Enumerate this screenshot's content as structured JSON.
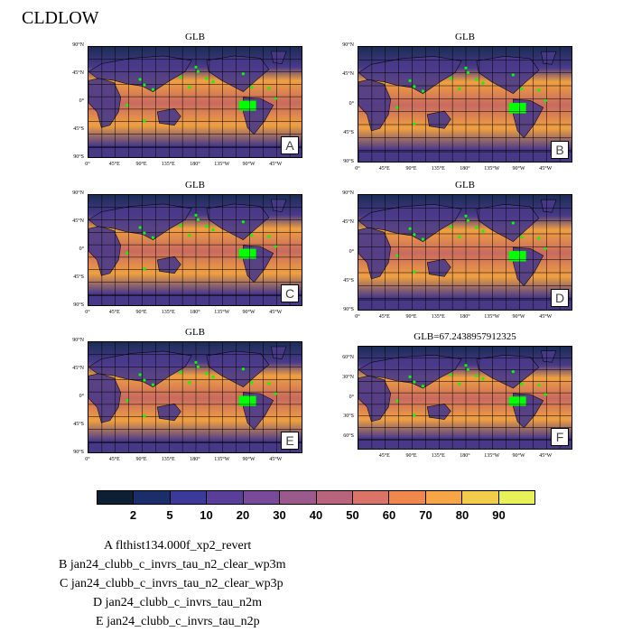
{
  "title": "CLDLOW",
  "colors": {
    "map_ocean_high": "#f0a040",
    "map_ocean_mid": "#c86a60",
    "map_land_low": "#4a3a8a",
    "map_polar": "#1a2c55",
    "map_marker": "#00ff00",
    "grid_line": "#000000"
  },
  "panels": [
    {
      "id": "A",
      "title": "GLB",
      "lat_ticks": [
        "90°N",
        "45°N",
        "0°",
        "45°S",
        "90°S"
      ],
      "lon_ticks": [
        "0°",
        "45°E",
        "90°E",
        "135°E",
        "180°",
        "135°W",
        "90°W",
        "45°W"
      ]
    },
    {
      "id": "B",
      "title": "GLB",
      "lat_ticks": [
        "90°N",
        "45°N",
        "0°",
        "45°S",
        "90°S"
      ],
      "lon_ticks": [
        "0°",
        "45°E",
        "90°E",
        "135°E",
        "180°",
        "135°W",
        "90°W",
        "45°W"
      ]
    },
    {
      "id": "C",
      "title": "GLB",
      "lat_ticks": [
        "90°N",
        "45°N",
        "0°",
        "45°S",
        "90°S"
      ],
      "lon_ticks": [
        "0°",
        "45°E",
        "90°E",
        "135°E",
        "180°",
        "135°W",
        "90°W",
        "45°W"
      ]
    },
    {
      "id": "D",
      "title": "GLB",
      "lat_ticks": [
        "90°N",
        "45°N",
        "0°",
        "45°S",
        "90°S"
      ],
      "lon_ticks": [
        "0°",
        "45°E",
        "90°E",
        "135°E",
        "180°",
        "135°W",
        "90°W",
        "45°W"
      ]
    },
    {
      "id": "E",
      "title": "GLB",
      "lat_ticks": [
        "90°N",
        "45°N",
        "0°",
        "45°S",
        "90°S"
      ],
      "lon_ticks": [
        "0°",
        "45°E",
        "90°E",
        "135°E",
        "180°",
        "135°W",
        "90°W",
        "45°W"
      ]
    },
    {
      "id": "F",
      "title": "GLB=67.2438957912325",
      "lat_ticks": [
        "60°N",
        "30°N",
        "0°",
        "30°S",
        "60°S"
      ],
      "lon_ticks": [
        "45°E",
        "90°E",
        "135°E",
        "180°",
        "135°W",
        "90°W",
        "45°W"
      ]
    }
  ],
  "colorbar": {
    "labels": [
      "2",
      "5",
      "10",
      "20",
      "30",
      "40",
      "50",
      "60",
      "70",
      "80",
      "90"
    ],
    "colors": [
      "#0c1f33",
      "#1a2f6a",
      "#3b3a9a",
      "#5a3f9a",
      "#7a4a9a",
      "#9a5a8c",
      "#b8647a",
      "#da7468",
      "#f0884e",
      "#f6a646",
      "#f4cc4c",
      "#e8f05a"
    ]
  },
  "legend": [
    {
      "id": "A",
      "name": "flthist134.000f_xp2_revert"
    },
    {
      "id": "B",
      "name": "jan24_clubb_c_invrs_tau_n2_clear_wp3m"
    },
    {
      "id": "C",
      "name": "jan24_clubb_c_invrs_tau_n2_clear_wp3p"
    },
    {
      "id": "D",
      "name": "jan24_clubb_c_invrs_tau_n2m"
    },
    {
      "id": "E",
      "name": "jan24_clubb_c_invrs_tau_n2p"
    }
  ],
  "chart_data": {
    "type": "heatmap",
    "title": "CLDLOW",
    "colorbar_levels": [
      2,
      5,
      10,
      20,
      30,
      40,
      50,
      60,
      70,
      80,
      90
    ],
    "panels": [
      "A",
      "B",
      "C",
      "D",
      "E",
      "F"
    ],
    "panel_F_global_mean": 67.2438957912325
  }
}
